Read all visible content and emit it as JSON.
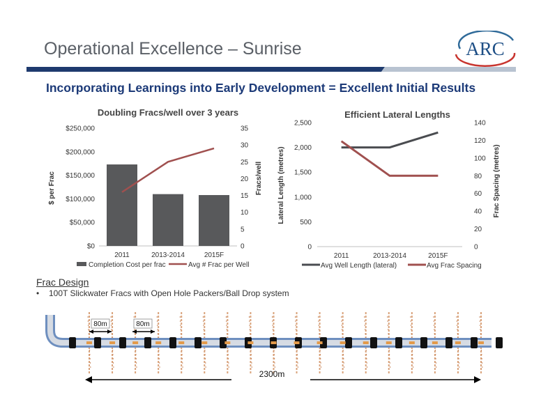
{
  "slide": {
    "title": "Operational Excellence – Sunrise",
    "subtitle": "Incorporating Learnings into Early Development = Excellent Initial Results",
    "logo_text": "ARC",
    "section_heading": "Frac Design",
    "bullet_marker": "•",
    "bullet_text": "100T Slickwater Fracs with Open Hole Packers/Ball Drop system",
    "colors": {
      "title_blue": "#1c3a78",
      "banner_navy": "#1e3a6e",
      "bar_gray": "#58595b",
      "line_red": "#a0504f",
      "line_gray": "#4a4c50"
    }
  },
  "diagram": {
    "spacing_label_1": "80m",
    "spacing_label_2": "80m",
    "length_label": "2300m",
    "stage_count": 18,
    "packer_count": 18
  },
  "chart_data": [
    {
      "type": "bar",
      "title": "Doubling Fracs/well over 3 years",
      "categories": [
        "2011",
        "2013-2014",
        "2015F"
      ],
      "ylabel": "$ per Frac",
      "y2label": "Fracs/well",
      "ylim": [
        0,
        250000
      ],
      "y2lim": [
        0,
        35
      ],
      "yticks": [
        "$0",
        "$50,000",
        "$100,000",
        "$150,000",
        "$200,000",
        "$250,000"
      ],
      "y2ticks": [
        "0",
        "5",
        "10",
        "15",
        "20",
        "25",
        "30",
        "35"
      ],
      "series": [
        {
          "name": "Completion Cost per frac",
          "type": "bar",
          "axis": "left",
          "color": "#58595b",
          "values": [
            173000,
            110000,
            108000
          ]
        },
        {
          "name": "Avg # Frac per Well",
          "type": "line",
          "axis": "right",
          "color": "#a0504f",
          "values": [
            16,
            25,
            29
          ]
        }
      ],
      "legend": "bottom",
      "grid": false
    },
    {
      "type": "line",
      "title": "Efficient Lateral Lengths",
      "categories": [
        "2011",
        "2013-2014",
        "2015F"
      ],
      "ylabel": "Lateral Length (metres)",
      "y2label": "Frac Spacing (metres)",
      "ylim": [
        0,
        2500
      ],
      "y2lim": [
        0,
        140
      ],
      "yticks": [
        "0",
        "500",
        "1,000",
        "1,500",
        "2,000",
        "2,500"
      ],
      "y2ticks": [
        "0",
        "20",
        "40",
        "60",
        "80",
        "100",
        "120",
        "140"
      ],
      "series": [
        {
          "name": "Avg Well Length (lateral)",
          "axis": "left",
          "color": "#4a4c50",
          "values": [
            2000,
            2000,
            2300
          ]
        },
        {
          "name": "Avg Frac Spacing",
          "axis": "right",
          "color": "#a0504f",
          "values": [
            119,
            80,
            80
          ]
        }
      ],
      "legend": "bottom",
      "grid": false
    }
  ]
}
